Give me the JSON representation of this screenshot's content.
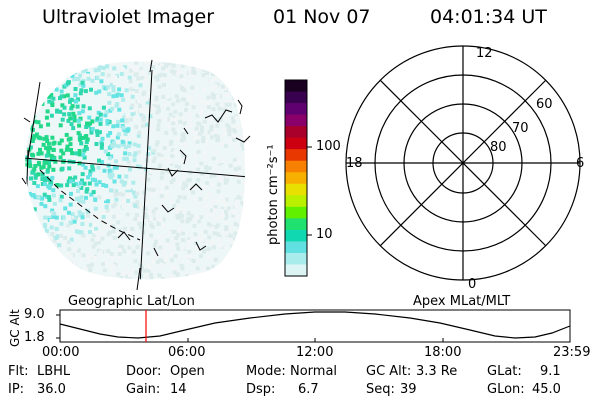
{
  "header": {
    "instrument": "Ultraviolet Imager",
    "date": "01 Nov 07",
    "time": "04:01:34 UT"
  },
  "colorbar": {
    "unit_label": "photon cm⁻²s⁻¹",
    "tick_labels": [
      "100",
      "10"
    ],
    "colors": [
      "#1a0020",
      "#3a0050",
      "#600070",
      "#8a006a",
      "#a8002a",
      "#cc0010",
      "#e83800",
      "#f88000",
      "#f8b000",
      "#e8e000",
      "#b8f000",
      "#60f000",
      "#20e070",
      "#10d8b0",
      "#60e0e0",
      "#a8ecec",
      "#dcf4f4"
    ]
  },
  "polar_plot": {
    "mlt_labels": {
      "top": "12",
      "left": "18",
      "right": "6",
      "bottom": "0"
    },
    "lat_labels": [
      "60",
      "70",
      "80"
    ]
  },
  "altitude_chart": {
    "left_title": "Geographic Lat/Lon",
    "right_title": "Apex MLat/MLT",
    "axis_label": "GC Alt",
    "y_ticks": [
      "9.0",
      "1.8"
    ],
    "x_ticks": [
      "00:00",
      "06:00",
      "12:00",
      "18:00",
      "23:59"
    ],
    "marker_color": "#ff0000"
  },
  "info": {
    "row1": [
      {
        "label": "Flt:",
        "value": "LBHL"
      },
      {
        "label": "Door:",
        "value": "Open"
      },
      {
        "label": "Mode:",
        "value": "Normal"
      },
      {
        "label": "GC Alt:",
        "value": "3.3 Re"
      },
      {
        "label": "GLat:",
        "value": "9.1"
      }
    ],
    "row2": [
      {
        "label": "IP:",
        "value": "36.0"
      },
      {
        "label": "Gain:",
        "value": "14"
      },
      {
        "label": "Dsp:",
        "value": "6.7"
      },
      {
        "label": "Seq:",
        "value": "39"
      },
      {
        "label": "GLon:",
        "value": "45.0"
      }
    ]
  }
}
